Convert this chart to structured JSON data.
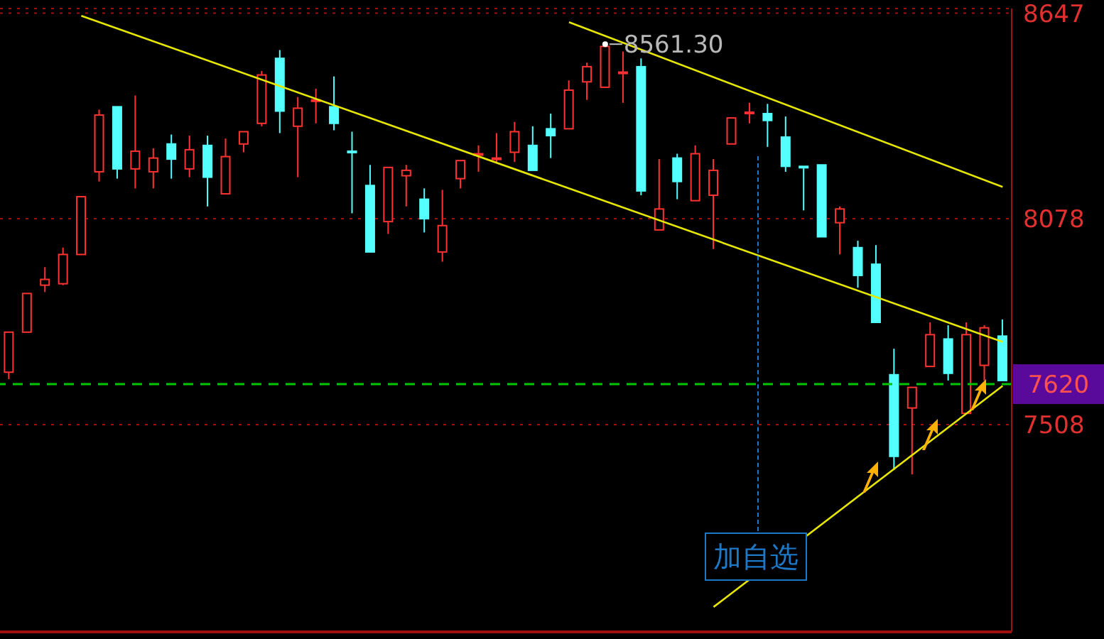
{
  "chart_data": {
    "type": "candlestick",
    "categories": [
      null,
      null,
      null,
      null,
      null,
      null,
      null,
      null,
      null,
      null,
      null,
      null,
      null,
      null,
      null,
      null,
      null,
      null,
      null,
      null,
      null,
      null,
      null,
      null,
      null,
      null,
      null,
      null,
      null,
      null,
      null,
      null,
      null,
      null,
      null,
      null,
      null,
      null,
      null,
      null,
      null,
      null,
      null,
      null,
      null,
      null,
      null,
      null,
      null,
      null,
      null,
      null,
      null,
      null,
      null,
      null
    ],
    "ohlc": [
      [
        7653,
        7764,
        7634,
        7764
      ],
      [
        7764,
        7871,
        7764,
        7871
      ],
      [
        7894,
        7944,
        7875,
        7910
      ],
      [
        7898,
        7998,
        7894,
        7979
      ],
      [
        7979,
        8139,
        7979,
        8139
      ],
      [
        8208,
        8380,
        8181,
        8365
      ],
      [
        8388,
        8388,
        8189,
        8216
      ],
      [
        8216,
        8419,
        8162,
        8265
      ],
      [
        8208,
        8273,
        8162,
        8246
      ],
      [
        8285,
        8311,
        8189,
        8243
      ],
      [
        8216,
        8308,
        8193,
        8269
      ],
      [
        8281,
        8308,
        8112,
        8193
      ],
      [
        8147,
        8300,
        8147,
        8250
      ],
      [
        8285,
        8319,
        8262,
        8319
      ],
      [
        8342,
        8487,
        8334,
        8476
      ],
      [
        8522,
        8545,
        8315,
        8376
      ],
      [
        8334,
        8415,
        8193,
        8384
      ],
      [
        8403,
        8438,
        8342,
        8407
      ],
      [
        8388,
        8472,
        8323,
        8342
      ],
      [
        8265,
        8319,
        8093,
        8262
      ],
      [
        8170,
        8227,
        7986,
        7986
      ],
      [
        8070,
        8220,
        8036,
        8220
      ],
      [
        8197,
        8227,
        8112,
        8212
      ],
      [
        8132,
        8162,
        8040,
        8078
      ],
      [
        7986,
        8158,
        7959,
        8059
      ],
      [
        8189,
        8239,
        8162,
        8239
      ],
      [
        8254,
        8281,
        8208,
        8258
      ],
      [
        8243,
        8315,
        8235,
        8246
      ],
      [
        8262,
        8346,
        8235,
        8319
      ],
      [
        8281,
        8334,
        8212,
        8212
      ],
      [
        8327,
        8369,
        8246,
        8308
      ],
      [
        8327,
        8461,
        8327,
        8434
      ],
      [
        8457,
        8510,
        8407,
        8499
      ],
      [
        8442,
        8561.3,
        8442,
        8555
      ],
      [
        8480,
        8541,
        8399,
        8484
      ],
      [
        8499,
        8522,
        8143,
        8155
      ],
      [
        8047,
        8243,
        8047,
        8105
      ],
      [
        8246,
        8258,
        8132,
        8181
      ],
      [
        8128,
        8281,
        8128,
        8258
      ],
      [
        8143,
        8243,
        7994,
        8212
      ],
      [
        8285,
        8357,
        8285,
        8357
      ],
      [
        8369,
        8399,
        8342,
        8373
      ],
      [
        8369,
        8396,
        8277,
        8350
      ],
      [
        8304,
        8361,
        8208,
        8223
      ],
      [
        8223,
        8223,
        8101,
        8220
      ],
      [
        8227,
        8227,
        8028,
        8028
      ],
      [
        8067,
        8112,
        7979,
        8105
      ],
      [
        7998,
        8017,
        7887,
        7921
      ],
      [
        7952,
        8005,
        7791,
        7791
      ],
      [
        7646,
        7718,
        7382,
        7420
      ],
      [
        7554,
        7611,
        7370,
        7611
      ],
      [
        7669,
        7791,
        7669,
        7757
      ],
      [
        7745,
        7783,
        7630,
        7650
      ],
      [
        7539,
        7791,
        7539,
        7757
      ],
      [
        7672,
        7783,
        7630,
        7776
      ],
      [
        7753,
        7799,
        7630,
        7630
      ]
    ],
    "colors": [
      "#ff3232",
      "#ff3232",
      "#ff3232",
      "#ff3232",
      "#ff3232",
      "#ff3232",
      "#54ffff",
      "#ff3232",
      "#ff3232",
      "#54ffff",
      "#ff3232",
      "#54ffff",
      "#ff3232",
      "#ff3232",
      "#ff3232",
      "#54ffff",
      "#ff3232",
      "#ff3232",
      "#54ffff",
      "#54ffff",
      "#54ffff",
      "#ff3232",
      "#ff3232",
      "#54ffff",
      "#ff3232",
      "#ff3232",
      "#ff3232",
      "#ff3232",
      "#ff3232",
      "#54ffff",
      "#54ffff",
      "#ff3232",
      "#ff3232",
      "#ff3232",
      "#ff3232",
      "#54ffff",
      "#ff3232",
      "#54ffff",
      "#ff3232",
      "#ff3232",
      "#ff3232",
      "#ff3232",
      "#54ffff",
      "#54ffff",
      "#54ffff",
      "#54ffff",
      "#ff3232",
      "#54ffff",
      "#54ffff",
      "#54ffff",
      "#ff3232",
      "#ff3232",
      "#54ffff",
      "#ff3232",
      "#ff3232",
      "#54ffff"
    ],
    "series": [
      {
        "type": "line",
        "color": "#e6e600",
        "values": [
          null,
          null,
          null,
          null,
          8640,
          null,
          null,
          null,
          null,
          null,
          null,
          null,
          null,
          null,
          null,
          null,
          null,
          null,
          null,
          null,
          null,
          null,
          null,
          null,
          null,
          null,
          null,
          null,
          null,
          null,
          null,
          null,
          null,
          null,
          null,
          null,
          null,
          null,
          null,
          null,
          null,
          null,
          null,
          null,
          null,
          null,
          null,
          null,
          null,
          null,
          null,
          null,
          null,
          null,
          null,
          7737
        ]
      },
      {
        "type": "line",
        "color": "#e6e600",
        "values": [
          null,
          null,
          null,
          null,
          null,
          null,
          null,
          null,
          null,
          null,
          null,
          null,
          null,
          null,
          null,
          null,
          null,
          null,
          null,
          null,
          null,
          null,
          null,
          null,
          null,
          null,
          null,
          null,
          null,
          null,
          null,
          8622,
          null,
          null,
          null,
          null,
          null,
          null,
          null,
          null,
          null,
          null,
          null,
          null,
          null,
          null,
          null,
          null,
          null,
          null,
          null,
          null,
          null,
          null,
          null,
          8166
        ]
      },
      {
        "type": "line",
        "color": "#e6e600",
        "values": [
          null,
          null,
          null,
          null,
          null,
          null,
          null,
          null,
          null,
          null,
          null,
          null,
          null,
          null,
          null,
          null,
          null,
          null,
          null,
          null,
          null,
          null,
          null,
          null,
          null,
          null,
          null,
          null,
          null,
          null,
          null,
          null,
          null,
          null,
          null,
          null,
          null,
          null,
          null,
          7003,
          null,
          null,
          null,
          null,
          null,
          null,
          null,
          null,
          null,
          null,
          null,
          null,
          null,
          null,
          null,
          7615
        ]
      }
    ],
    "ylim": [
      6934,
      8660
    ],
    "yticks": [
      7508,
      8078,
      8647
    ],
    "grid": "y",
    "legend": false,
    "tick_labels": "y",
    "marker": "none",
    "ref_lines": [
      {
        "axis": "y",
        "value": 7620,
        "label": "7620",
        "color": "#00c800",
        "line_style": "dashed"
      }
    ],
    "annotations": [
      "8561.30",
      "加自选"
    ]
  }
}
